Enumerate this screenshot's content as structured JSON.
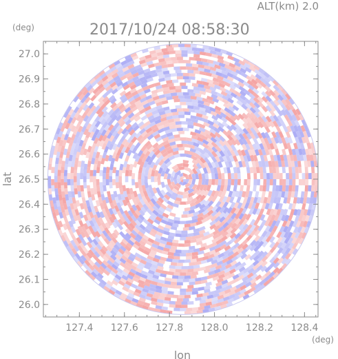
{
  "header": {
    "alt_label": "ALT(km) 2.0",
    "datetime": "2017/10/24 08:58:30",
    "y_unit": "(deg)",
    "x_unit": "(deg)"
  },
  "chart_data": {
    "type": "heatmap",
    "title": "2017/10/24 08:58:30",
    "subtitle": "ALT(km) 2.0",
    "xlabel": "lon",
    "ylabel": "lat",
    "xlim": [
      127.24,
      128.46
    ],
    "ylim": [
      25.95,
      27.05
    ],
    "x_ticks": [
      "127.4",
      "127.6",
      "127.8",
      "128.0",
      "128.2",
      "128.4"
    ],
    "y_ticks": [
      "26.0",
      "26.1",
      "26.2",
      "26.3",
      "26.4",
      "26.5",
      "26.6",
      "26.7",
      "26.8",
      "26.9",
      "27.0"
    ],
    "x_tick_values": [
      127.4,
      127.6,
      127.8,
      128.0,
      128.2,
      128.4
    ],
    "y_tick_values": [
      26.0,
      26.1,
      26.2,
      26.3,
      26.4,
      26.5,
      26.6,
      26.7,
      26.8,
      26.9,
      27.0
    ],
    "radar_center": {
      "lon": 127.86,
      "lat": 26.5
    },
    "radar_range_deg_lat": 0.54,
    "colors": {
      "positive": "#f4a0a0",
      "negative": "#a8a8f4",
      "zero": "#ffffff",
      "axis": "#8a8a8a"
    },
    "grid": false,
    "legend": "none"
  }
}
